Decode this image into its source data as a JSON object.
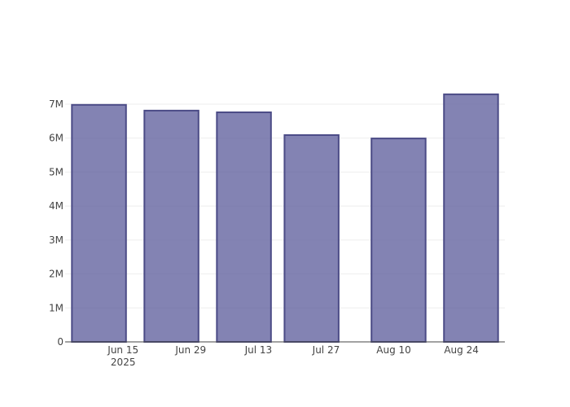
{
  "chart_data": {
    "type": "bar",
    "x": [
      "2025-06-10",
      "2025-06-25",
      "2025-07-10",
      "2025-07-24",
      "2025-08-11",
      "2025-08-26"
    ],
    "values": [
      6980000,
      6810000,
      6760000,
      6090000,
      5990000,
      7290000
    ],
    "color": "rgba(100,100,160,0.8)",
    "edge_color": "#4b4b86",
    "xlim": [
      "2025-06-03",
      "2025-09-02"
    ],
    "xticks": [
      {
        "value": "2025-06-15",
        "label": "Jun 15\n2025"
      },
      {
        "value": "2025-06-29",
        "label": "Jun 29"
      },
      {
        "value": "2025-07-13",
        "label": "Jul 13"
      },
      {
        "value": "2025-07-27",
        "label": "Jul 27"
      },
      {
        "value": "2025-08-10",
        "label": "Aug 10"
      },
      {
        "value": "2025-08-24",
        "label": "Aug 24"
      }
    ],
    "ylim": [
      0,
      7670000
    ],
    "yticks": [
      0,
      {
        "value": 1000000,
        "label": "1M"
      },
      {
        "value": 2000000,
        "label": "2M"
      },
      {
        "value": 3000000,
        "label": "3M"
      },
      {
        "value": 4000000,
        "label": "4M"
      },
      {
        "value": 5000000,
        "label": "5M"
      },
      {
        "value": 6000000,
        "label": "6M"
      },
      {
        "value": 7000000,
        "label": "7M"
      }
    ],
    "grid": true
  }
}
